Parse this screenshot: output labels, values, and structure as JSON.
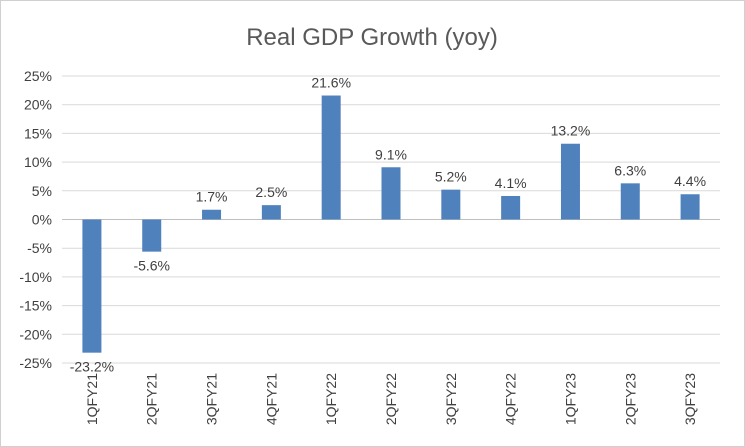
{
  "chart_data": {
    "type": "bar",
    "title": "Real GDP Growth (yoy)",
    "categories": [
      "1QFY21",
      "2QFY21",
      "3QFY21",
      "4QFY21",
      "1QFY22",
      "2QFY22",
      "3QFY22",
      "4QFY22",
      "1QFY23",
      "2QFY23",
      "3QFY23"
    ],
    "values": [
      -23.2,
      -5.6,
      1.7,
      2.5,
      21.6,
      9.1,
      5.2,
      4.1,
      13.2,
      6.3,
      4.4
    ],
    "data_labels": [
      "-23.2%",
      "-5.6%",
      "1.7%",
      "2.5%",
      "21.6%",
      "9.1%",
      "5.2%",
      "4.1%",
      "13.2%",
      "6.3%",
      "4.4%"
    ],
    "yticks": [
      25,
      20,
      15,
      10,
      5,
      0,
      -5,
      -10,
      -15,
      -20,
      -25
    ],
    "ytick_labels": [
      "25%",
      "20%",
      "15%",
      "10%",
      "5%",
      "0%",
      "-5%",
      "-10%",
      "-15%",
      "-20%",
      "-25%"
    ],
    "ylim": [
      -25,
      25
    ],
    "xlabel": "",
    "ylabel": "",
    "grid": true,
    "legend": "none",
    "bar_color": "#4f81bd"
  }
}
